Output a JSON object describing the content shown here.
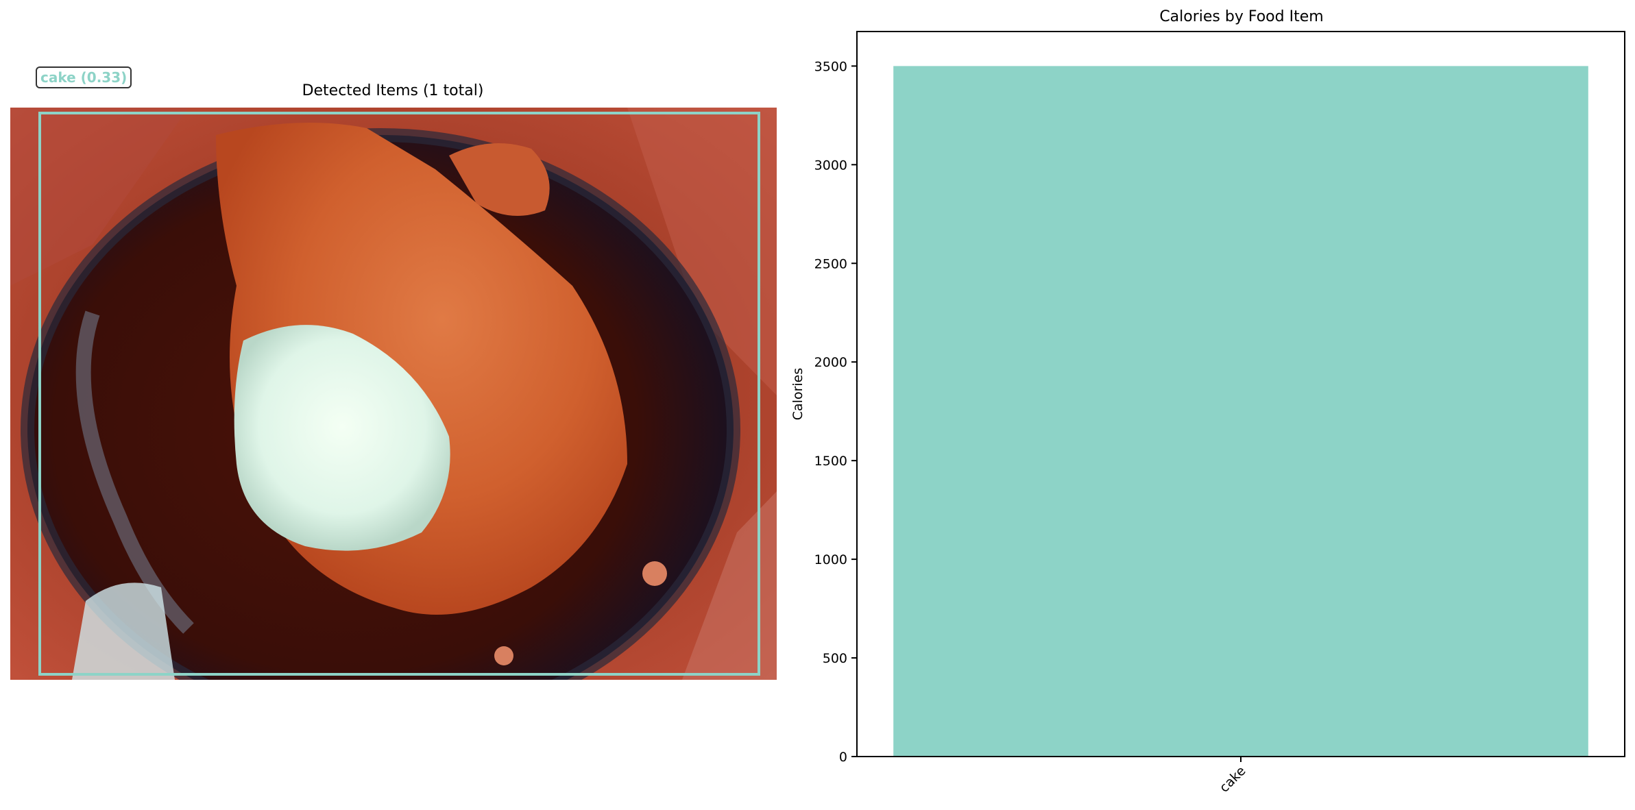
{
  "detection_panel": {
    "title": "Detected Items (1 total)",
    "detections": [
      {
        "label": "cake (0.33)",
        "color": "#8dd3c7"
      }
    ]
  },
  "chart_data": {
    "type": "bar",
    "title": "Calories by Food Item",
    "xlabel": "",
    "ylabel": "Calories",
    "categories": [
      "cake"
    ],
    "values": [
      3500
    ],
    "ylim": [
      0,
      3675
    ],
    "yticks": [
      0,
      500,
      1000,
      1500,
      2000,
      2500,
      3000,
      3500
    ],
    "bar_color": "#8dd3c7",
    "grid": false,
    "xtick_rotation": 45
  }
}
